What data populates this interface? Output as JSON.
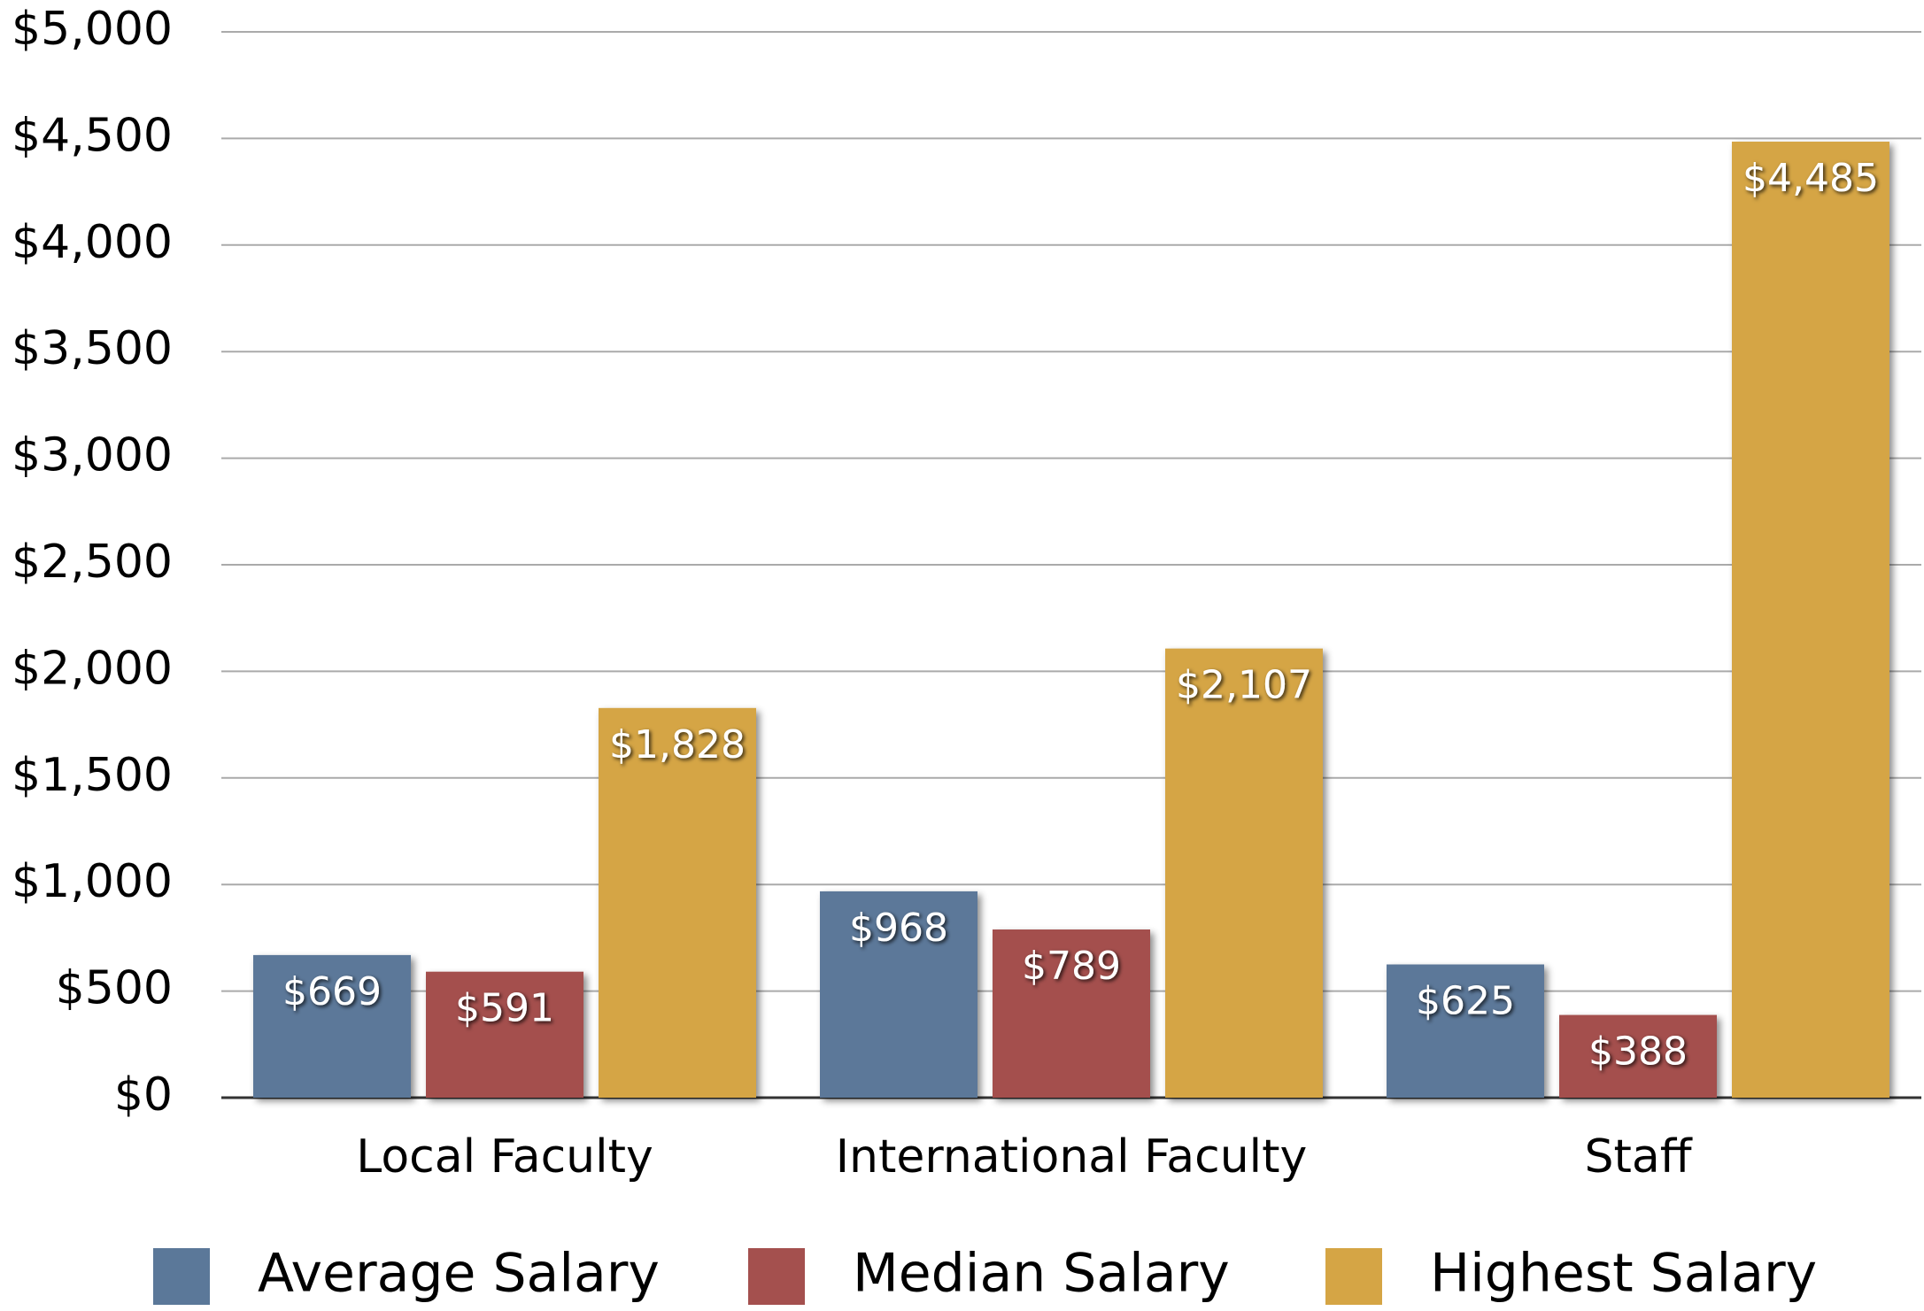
{
  "chart_data": {
    "type": "bar",
    "categories": [
      "Local Faculty",
      "International Faculty",
      "Staff"
    ],
    "series": [
      {
        "name": "Average Salary",
        "color": "#5b7899",
        "values": [
          669,
          968,
          625
        ],
        "value_labels": [
          "$669",
          "$968",
          "$625"
        ]
      },
      {
        "name": "Median Salary",
        "color": "#a4504e",
        "values": [
          591,
          789,
          388
        ],
        "value_labels": [
          "$591",
          "$789",
          "$388"
        ]
      },
      {
        "name": "Highest Salary",
        "color": "#d5a545",
        "values": [
          1828,
          2107,
          4485
        ],
        "value_labels": [
          "$1,828",
          "$2,107",
          "$4,485"
        ]
      }
    ],
    "ylim": [
      0,
      5000
    ],
    "yticks": [
      {
        "value": 0,
        "label": "$0"
      },
      {
        "value": 500,
        "label": "$500"
      },
      {
        "value": 1000,
        "label": "$1,000"
      },
      {
        "value": 1500,
        "label": "$1,500"
      },
      {
        "value": 2000,
        "label": "$2,000"
      },
      {
        "value": 2500,
        "label": "$2,500"
      },
      {
        "value": 3000,
        "label": "$3,000"
      },
      {
        "value": 3500,
        "label": "$3,500"
      },
      {
        "value": 4000,
        "label": "$4,000"
      },
      {
        "value": 4500,
        "label": "$4,500"
      },
      {
        "value": 5000,
        "label": "$5,000"
      }
    ],
    "grid": true,
    "legend": "bottom"
  }
}
